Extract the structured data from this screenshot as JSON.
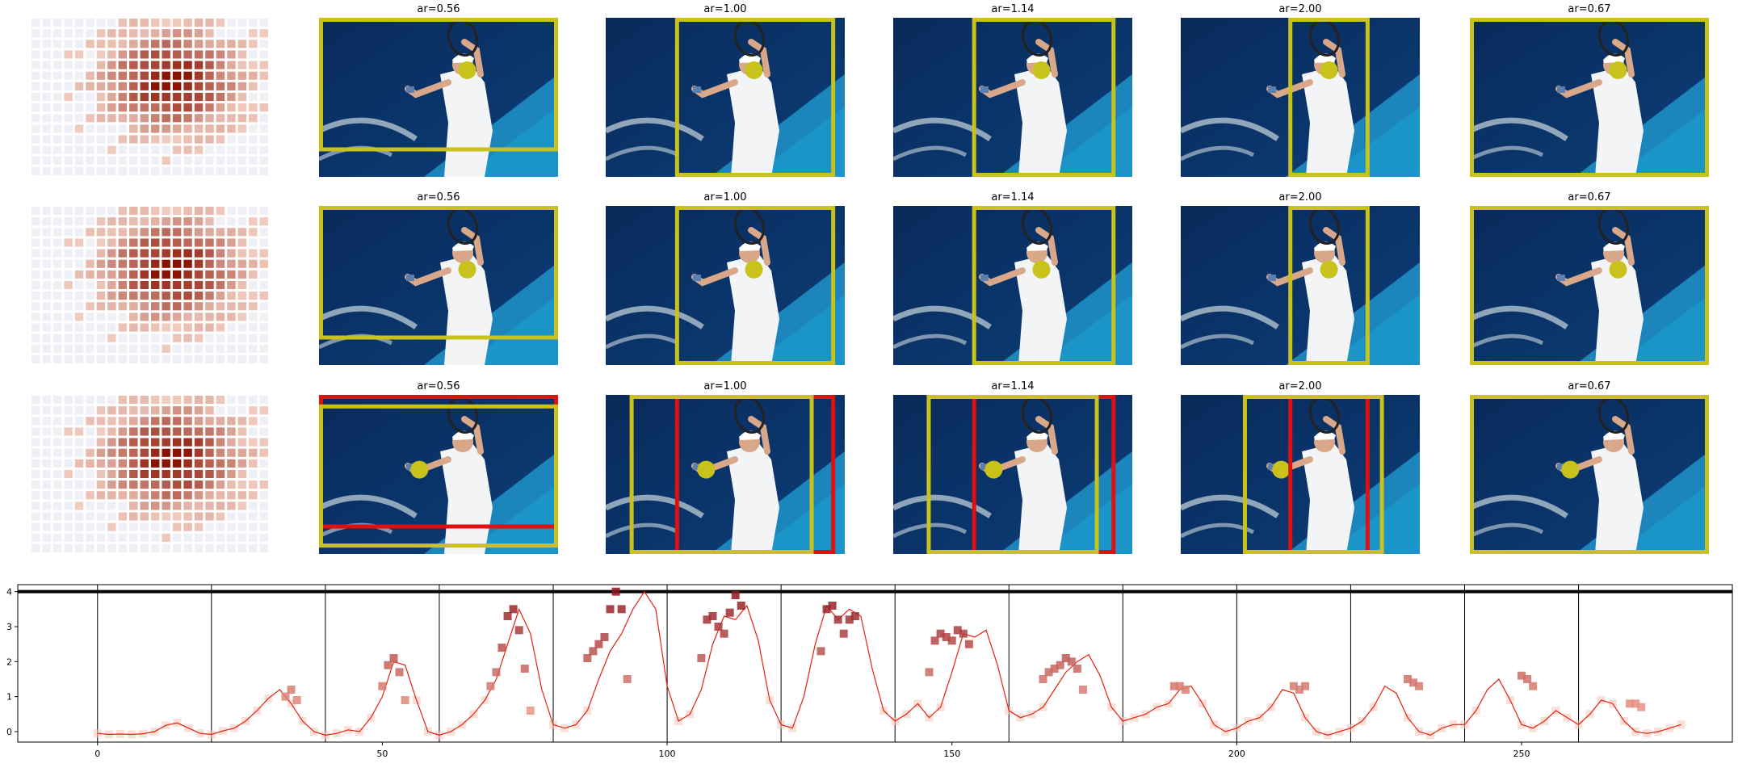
{
  "panel_titles": [
    [
      "ar=0.56",
      "ar=1.00",
      "ar=1.14",
      "ar=2.00",
      "ar=0.67"
    ],
    [
      "ar=0.56",
      "ar=1.00",
      "ar=1.14",
      "ar=2.00",
      "ar=0.67"
    ],
    [
      "ar=0.56",
      "ar=1.00",
      "ar=1.14",
      "ar=2.00",
      "ar=0.67"
    ]
  ],
  "colors": {
    "crop_box": "#c8c21a",
    "alt_box": "#e01010",
    "marker": "#c8c21a",
    "line": "#e8200c",
    "heat_low": "#fde7dc",
    "heat_high": "#8b0a14"
  },
  "icons": [
    "tennis-player-photo",
    "saliency-heatmap"
  ],
  "chart_data": {
    "type": "line",
    "title": "",
    "xlabel": "",
    "ylabel": "",
    "xlim": [
      -14,
      287
    ],
    "ylim": [
      -0.3,
      4.2
    ],
    "xticks": [
      0,
      50,
      100,
      150,
      200,
      250
    ],
    "yticks": [
      0,
      1,
      2,
      3,
      4
    ],
    "hline": 4,
    "vlines": [
      0,
      20,
      40,
      60,
      80,
      100,
      120,
      140,
      160,
      180,
      200,
      220,
      240,
      260
    ],
    "series": [
      {
        "x": [
          0,
          2,
          4,
          6,
          8,
          10,
          12,
          14,
          16,
          18,
          20,
          22,
          24,
          26,
          28,
          30,
          32,
          34,
          36,
          38,
          40,
          42,
          44,
          46,
          48,
          50,
          52,
          54,
          56,
          58,
          60,
          62,
          64,
          66,
          68,
          70,
          72,
          74,
          76,
          78,
          80,
          82,
          84,
          86,
          88,
          90,
          92,
          94,
          96,
          98,
          100,
          102,
          104,
          106,
          108,
          110,
          112,
          114,
          116,
          118,
          120,
          122,
          124,
          126,
          128,
          130,
          132,
          134,
          136,
          138,
          140,
          142,
          144,
          146,
          148,
          150,
          152,
          154,
          156,
          158,
          160,
          162,
          164,
          166,
          168,
          170,
          172,
          174,
          176,
          178,
          180,
          182,
          184,
          186,
          188,
          190,
          192,
          194,
          196,
          198,
          200,
          202,
          204,
          206,
          208,
          210,
          212,
          214,
          216,
          218,
          220,
          222,
          224,
          226,
          228,
          230,
          232,
          234,
          236,
          238,
          240,
          242,
          244,
          246,
          248,
          250,
          252,
          254,
          256,
          258,
          260,
          262,
          264,
          266,
          268,
          270,
          272,
          274,
          276,
          278
        ],
        "y": [
          -0.05,
          -0.08,
          -0.07,
          -0.08,
          -0.06,
          0.0,
          0.18,
          0.25,
          0.1,
          -0.05,
          -0.08,
          0.02,
          0.1,
          0.3,
          0.6,
          0.95,
          1.2,
          0.8,
          0.3,
          0.0,
          -0.1,
          -0.05,
          0.05,
          0.0,
          0.4,
          1.0,
          2.0,
          1.9,
          0.9,
          0.0,
          -0.1,
          0.0,
          0.2,
          0.5,
          0.9,
          1.5,
          2.5,
          3.5,
          2.8,
          1.2,
          0.2,
          0.1,
          0.2,
          0.6,
          1.5,
          2.3,
          2.8,
          3.5,
          4.0,
          3.5,
          1.3,
          0.3,
          0.5,
          1.2,
          2.5,
          3.3,
          3.2,
          3.6,
          2.6,
          0.9,
          0.2,
          0.1,
          1.0,
          2.5,
          3.6,
          3.2,
          3.5,
          3.3,
          1.8,
          0.6,
          0.3,
          0.5,
          0.8,
          0.4,
          0.7,
          1.7,
          2.8,
          2.7,
          2.9,
          1.9,
          0.6,
          0.4,
          0.5,
          0.7,
          1.2,
          1.7,
          2.0,
          2.2,
          1.6,
          0.7,
          0.3,
          0.4,
          0.5,
          0.7,
          0.8,
          1.2,
          1.3,
          0.8,
          0.2,
          0.0,
          0.1,
          0.3,
          0.4,
          0.7,
          1.2,
          1.1,
          0.4,
          0.0,
          -0.1,
          0.0,
          0.1,
          0.3,
          0.7,
          1.3,
          1.1,
          0.4,
          0.0,
          -0.1,
          0.1,
          0.2,
          0.2,
          0.6,
          1.2,
          1.5,
          0.9,
          0.2,
          0.1,
          0.3,
          0.6,
          0.4,
          0.2,
          0.5,
          0.9,
          0.8,
          0.3,
          0.0,
          -0.05,
          0.0,
          0.1,
          0.2
        ]
      }
    ],
    "markers": {
      "x": [
        33,
        34,
        35,
        50,
        51,
        52,
        53,
        54,
        69,
        70,
        71,
        72,
        73,
        74,
        75,
        76,
        86,
        87,
        88,
        89,
        90,
        91,
        92,
        93,
        106,
        107,
        108,
        109,
        110,
        111,
        112,
        113,
        127,
        128,
        129,
        130,
        131,
        132,
        133,
        146,
        147,
        148,
        149,
        150,
        151,
        152,
        153,
        166,
        167,
        168,
        169,
        170,
        171,
        172,
        173,
        189,
        190,
        191,
        210,
        211,
        212,
        230,
        231,
        232,
        250,
        251,
        252,
        269,
        270,
        271
      ],
      "y": [
        1.0,
        1.2,
        0.9,
        1.3,
        1.9,
        2.1,
        1.7,
        0.9,
        1.3,
        1.7,
        2.4,
        3.3,
        3.5,
        2.9,
        1.8,
        0.6,
        2.1,
        2.3,
        2.5,
        2.7,
        3.5,
        4.0,
        3.5,
        1.5,
        2.1,
        3.2,
        3.3,
        3.0,
        2.8,
        3.4,
        3.9,
        3.6,
        2.3,
        3.5,
        3.6,
        3.2,
        2.8,
        3.2,
        3.3,
        1.7,
        2.6,
        2.8,
        2.7,
        2.6,
        2.9,
        2.8,
        2.5,
        1.5,
        1.7,
        1.8,
        1.9,
        2.1,
        2.0,
        1.8,
        1.2,
        1.3,
        1.3,
        1.2,
        1.3,
        1.2,
        1.3,
        1.5,
        1.4,
        1.3,
        1.6,
        1.5,
        1.3,
        0.8,
        0.8,
        0.7
      ]
    }
  }
}
